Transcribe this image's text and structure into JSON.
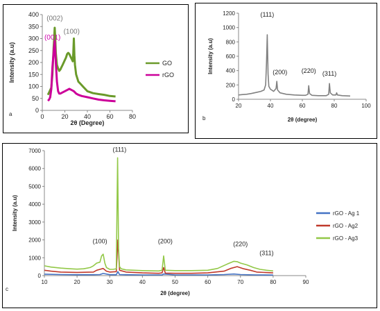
{
  "chart_data": [
    {
      "type": "line",
      "panel_label": "a",
      "xlabel": "2θ (Degree)",
      "ylabel": "Intensity (a.u)",
      "xlim": [
        0,
        80
      ],
      "ylim": [
        0,
        400
      ],
      "xticks": [
        "0",
        "20",
        "40",
        "60",
        "80"
      ],
      "yticks": [
        "0",
        "50",
        "100",
        "150",
        "200",
        "250",
        "300",
        "350",
        "400"
      ],
      "legend_position": "right",
      "annotations": [
        {
          "text": "(002)",
          "x": 11,
          "y": 375,
          "color": "#777777"
        },
        {
          "text": "(100)",
          "x": 26,
          "y": 320,
          "color": "#777777"
        },
        {
          "text": "(001)",
          "x": 9,
          "y": 295,
          "color": "#cc00aa"
        }
      ],
      "series": [
        {
          "name": "GO",
          "color": "#6a9a2a",
          "x": [
            5,
            6,
            7,
            8,
            9,
            10,
            10.5,
            11,
            11.5,
            12,
            13,
            14,
            15,
            16,
            17,
            18,
            19,
            20,
            21,
            22,
            23,
            24,
            25,
            26,
            27,
            27.5,
            28,
            28.5,
            29,
            30,
            32,
            34,
            36,
            38,
            40,
            45,
            50,
            55,
            60,
            65
          ],
          "y": [
            65,
            75,
            85,
            95,
            150,
            260,
            300,
            345,
            300,
            240,
            190,
            175,
            165,
            170,
            180,
            190,
            200,
            210,
            220,
            235,
            240,
            235,
            225,
            215,
            205,
            240,
            300,
            230,
            190,
            150,
            120,
            110,
            100,
            90,
            80,
            72,
            68,
            65,
            60,
            58
          ]
        },
        {
          "name": "rGO",
          "color": "#cc0099",
          "x": [
            5,
            6,
            7,
            8,
            9,
            10,
            11,
            12,
            13,
            14,
            15,
            16,
            18,
            20,
            22,
            24,
            26,
            28,
            30,
            32,
            35,
            40,
            45,
            50,
            55,
            60,
            65
          ],
          "y": [
            40,
            45,
            55,
            90,
            180,
            240,
            290,
            200,
            120,
            80,
            70,
            70,
            75,
            80,
            85,
            90,
            85,
            80,
            70,
            65,
            60,
            55,
            50,
            45,
            42,
            40,
            38
          ]
        }
      ]
    },
    {
      "type": "line",
      "panel_label": "b",
      "xlabel": "2θ (degree)",
      "ylabel": "Intensity (a.u)",
      "xlim": [
        20,
        100
      ],
      "ylim": [
        0,
        1200
      ],
      "xticks": [
        "20",
        "40",
        "60",
        "80",
        "100"
      ],
      "yticks": [
        "0",
        "200",
        "400",
        "600",
        "800",
        "1000",
        "1200"
      ],
      "annotations": [
        {
          "text": "(111)",
          "x": 38,
          "y": 1150
        },
        {
          "text": "(200)",
          "x": 46,
          "y": 350
        },
        {
          "text": "(220)",
          "x": 64,
          "y": 370
        },
        {
          "text": "(311)",
          "x": 77,
          "y": 330
        }
      ],
      "series": [
        {
          "name": "",
          "color": "#808080",
          "x": [
            20,
            22,
            25,
            28,
            30,
            32,
            34,
            36,
            37,
            37.5,
            38,
            38.5,
            39,
            40,
            42,
            43.5,
            44,
            44.5,
            46,
            50,
            55,
            60,
            62,
            63.5,
            64,
            64.5,
            66,
            70,
            75,
            76.5,
            77,
            77.5,
            79,
            81,
            81.5,
            82,
            85,
            90
          ],
          "y": [
            60,
            65,
            70,
            80,
            90,
            100,
            110,
            130,
            200,
            500,
            900,
            350,
            180,
            140,
            110,
            150,
            250,
            130,
            90,
            70,
            60,
            55,
            55,
            70,
            190,
            80,
            55,
            50,
            50,
            70,
            220,
            90,
            60,
            60,
            90,
            60,
            50,
            45
          ]
        }
      ]
    },
    {
      "type": "line",
      "panel_label": "c",
      "xlabel": "2θ (degree)",
      "ylabel": "Intensity (a.u)",
      "xlim": [
        10,
        90
      ],
      "ylim": [
        0,
        7000
      ],
      "xticks": [
        "10",
        "20",
        "30",
        "40",
        "50",
        "60",
        "70",
        "80",
        "90"
      ],
      "yticks": [
        "0",
        "1000",
        "2000",
        "3000",
        "4000",
        "5000",
        "6000",
        "7000"
      ],
      "legend_position": "right",
      "annotations": [
        {
          "text": "(111)",
          "x": 33,
          "y": 6950
        },
        {
          "text": "(100)",
          "x": 27,
          "y": 1800
        },
        {
          "text": "(200)",
          "x": 47,
          "y": 1800
        },
        {
          "text": "(220)",
          "x": 70,
          "y": 1650
        },
        {
          "text": "(311)",
          "x": 78,
          "y": 1150
        }
      ],
      "series": [
        {
          "name": "rGO - Ag 1",
          "color": "#4472c4",
          "x": [
            10,
            15,
            20,
            25,
            27,
            28,
            30,
            32,
            32.5,
            33,
            35,
            40,
            46,
            46.5,
            50,
            60,
            65,
            68,
            70,
            75,
            80
          ],
          "y": [
            80,
            60,
            50,
            50,
            60,
            120,
            50,
            50,
            220,
            60,
            50,
            40,
            40,
            90,
            40,
            40,
            60,
            90,
            60,
            40,
            30
          ]
        },
        {
          "name": "rGO - Ag2",
          "color": "#c0392b",
          "x": [
            10,
            12,
            15,
            20,
            25,
            26,
            27,
            28,
            29,
            30,
            32,
            32.5,
            33,
            35,
            40,
            45,
            46,
            46.5,
            47,
            50,
            55,
            60,
            65,
            67,
            69,
            71,
            73,
            75,
            80
          ],
          "y": [
            300,
            250,
            200,
            180,
            200,
            300,
            350,
            400,
            250,
            200,
            220,
            2000,
            300,
            200,
            150,
            130,
            150,
            450,
            140,
            130,
            130,
            150,
            250,
            400,
            500,
            380,
            300,
            200,
            150
          ]
        },
        {
          "name": "rGO - Ag3",
          "color": "#92c847",
          "x": [
            10,
            12,
            15,
            18,
            20,
            22,
            24,
            25,
            26,
            27,
            27.5,
            28,
            28.5,
            29,
            30,
            31,
            32,
            32.4,
            32.7,
            33,
            33.5,
            35,
            40,
            45,
            46,
            46.5,
            47,
            50,
            55,
            60,
            63,
            66,
            68,
            69,
            70,
            72,
            74,
            76,
            78,
            80
          ],
          "y": [
            550,
            480,
            420,
            380,
            360,
            380,
            450,
            550,
            700,
            750,
            1100,
            1200,
            700,
            450,
            350,
            350,
            380,
            6600,
            1500,
            500,
            380,
            320,
            280,
            260,
            300,
            1100,
            300,
            280,
            280,
            300,
            400,
            650,
            800,
            780,
            700,
            600,
            450,
            350,
            300,
            260
          ]
        }
      ]
    }
  ]
}
